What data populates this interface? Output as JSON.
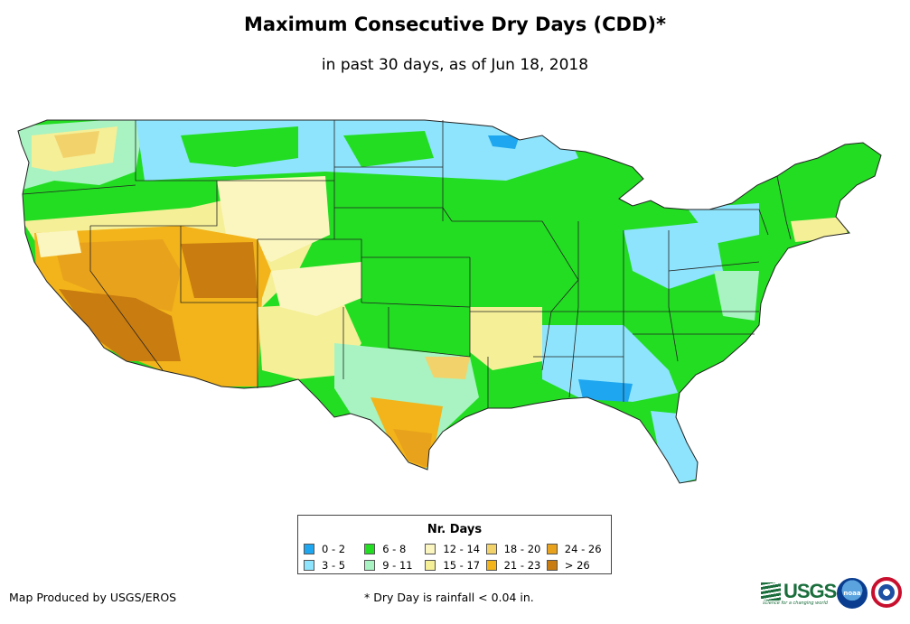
{
  "title": "Maximum Consecutive Dry Days (CDD)*",
  "subtitle": "in past 30 days, as of Jun 18, 2018",
  "legend": {
    "title": "Nr. Days",
    "items": [
      {
        "label": "0 - 2",
        "color": "#1ea7f0"
      },
      {
        "label": "6 - 8",
        "color": "#22dd22"
      },
      {
        "label": "12 - 14",
        "color": "#fbf6c0"
      },
      {
        "label": "18 - 20",
        "color": "#f2d36b"
      },
      {
        "label": "24 - 26",
        "color": "#e9a21c"
      },
      {
        "label": "3 - 5",
        "color": "#8ee4fc"
      },
      {
        "label": "9 - 11",
        "color": "#a8f3c1"
      },
      {
        "label": "15 - 17",
        "color": "#f5ef98"
      },
      {
        "label": "21 - 23",
        "color": "#f2b41a"
      },
      {
        "label": "> 26",
        "color": "#c97c0f"
      }
    ]
  },
  "footer": {
    "credit": "Map Produced by USGS/EROS",
    "footnote": "* Dry Day is rainfall < 0.04 in."
  },
  "logos": {
    "usgs": "USGS",
    "usgs_tagline": "science for a changing world",
    "noaa": "noaa",
    "nws_icon": "nws-seal-icon"
  },
  "map": {
    "region": "contiguous United States",
    "colors": {
      "c0_2": "#1ea7f0",
      "c3_5": "#8ee4fc",
      "c6_8": "#22dd22",
      "c9_11": "#a8f3c1",
      "c12_14": "#fbf6c0",
      "c15_17": "#f5ef98",
      "c18_20": "#f2d36b",
      "c21_23": "#f2b41a",
      "c24_26": "#e9a21c",
      "c26p": "#c97c0f"
    }
  }
}
